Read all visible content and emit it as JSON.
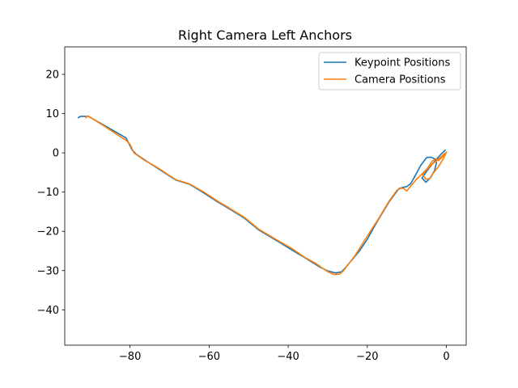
{
  "chart_data": {
    "type": "line",
    "title": "Right Camera Left Anchors",
    "xlabel": "",
    "ylabel": "",
    "xlim": [
      -96.5,
      5
    ],
    "ylim": [
      -49,
      27
    ],
    "xticks": [
      -80,
      -60,
      -40,
      -20,
      0
    ],
    "yticks": [
      20,
      10,
      0,
      -10,
      -20,
      -30,
      -40
    ],
    "grid": false,
    "legend": {
      "position": "top-right"
    },
    "series": [
      {
        "name": "Keypoint Positions",
        "color": "#1f77b4",
        "points": [
          [
            -93.2,
            8.9
          ],
          [
            -92.5,
            9.3
          ],
          [
            -90.5,
            9.3
          ],
          [
            -81,
            3.8
          ],
          [
            -79.5,
            0.8
          ],
          [
            -78.5,
            -0.3
          ],
          [
            -76,
            -2
          ],
          [
            -72,
            -4.6
          ],
          [
            -68.5,
            -6.9
          ],
          [
            -65,
            -8
          ],
          [
            -62,
            -9.8
          ],
          [
            -58,
            -12.4
          ],
          [
            -55,
            -14.2
          ],
          [
            -51,
            -16.7
          ],
          [
            -47.5,
            -19.6
          ],
          [
            -43,
            -22.3
          ],
          [
            -38,
            -25.4
          ],
          [
            -35,
            -27.2
          ],
          [
            -32,
            -29.1
          ],
          [
            -30,
            -30.1
          ],
          [
            -28,
            -30.6
          ],
          [
            -26.5,
            -30.3
          ],
          [
            -25.5,
            -29.2
          ],
          [
            -22,
            -25
          ],
          [
            -20,
            -22
          ],
          [
            -17.5,
            -17.5
          ],
          [
            -14.5,
            -12.5
          ],
          [
            -12,
            -9.1
          ],
          [
            -11,
            -8.8
          ],
          [
            -10,
            -8.6
          ],
          [
            -9,
            -7.8
          ],
          [
            -8,
            -6
          ],
          [
            -6.5,
            -3.2
          ],
          [
            -5,
            -1.2
          ],
          [
            -4,
            -1.1
          ],
          [
            -3,
            -1.5
          ],
          [
            -2.5,
            -2.5
          ],
          [
            -3,
            -4.5
          ],
          [
            -4,
            -6.3
          ],
          [
            -5.2,
            -7.5
          ],
          [
            -6.2,
            -6.4
          ],
          [
            -4.5,
            -4
          ],
          [
            -3,
            -2.2
          ],
          [
            -1.5,
            -0.5
          ],
          [
            -0.2,
            0.8
          ]
        ]
      },
      {
        "name": "Camera Positions",
        "color": "#ff7f0e",
        "points": [
          [
            -91.2,
            8.8
          ],
          [
            -91,
            9.3
          ],
          [
            -90.7,
            9.4
          ],
          [
            -89,
            8.4
          ],
          [
            -81,
            3.2
          ],
          [
            -80,
            2.2
          ],
          [
            -79,
            0
          ],
          [
            -76.5,
            -1.8
          ],
          [
            -73,
            -3.8
          ],
          [
            -68.5,
            -6.8
          ],
          [
            -65,
            -7.9
          ],
          [
            -61,
            -10.2
          ],
          [
            -58,
            -12.2
          ],
          [
            -55,
            -14
          ],
          [
            -51,
            -16.5
          ],
          [
            -47.5,
            -19.4
          ],
          [
            -42,
            -22.7
          ],
          [
            -39,
            -24.4
          ],
          [
            -36,
            -26.5
          ],
          [
            -33,
            -28.2
          ],
          [
            -30,
            -30.3
          ],
          [
            -28.5,
            -31
          ],
          [
            -27,
            -30.9
          ],
          [
            -26,
            -30
          ],
          [
            -23,
            -26
          ],
          [
            -20,
            -21.2
          ],
          [
            -17,
            -16.5
          ],
          [
            -14.5,
            -12.3
          ],
          [
            -12.5,
            -9.5
          ],
          [
            -11.5,
            -9
          ],
          [
            -10.8,
            -9.1
          ],
          [
            -10,
            -9.7
          ],
          [
            -9,
            -8.4
          ],
          [
            -7.8,
            -7
          ],
          [
            -5,
            -4.2
          ],
          [
            -3.5,
            -2
          ],
          [
            -2.6,
            -1.5
          ],
          [
            -2,
            -2
          ],
          [
            -1.2,
            -1.2
          ],
          [
            -0.5,
            -0.5
          ],
          [
            0,
            0.2
          ],
          [
            -0.8,
            -1.5
          ],
          [
            -2,
            -3.5
          ],
          [
            -3.5,
            -5.4
          ],
          [
            -4.3,
            -6.6
          ],
          [
            -5.3,
            -6.7
          ],
          [
            -6,
            -5.5
          ],
          [
            -5.2,
            -4.5
          ],
          [
            -4.3,
            -3.5
          ],
          [
            -2.5,
            -2
          ],
          [
            -1,
            -0.7
          ],
          [
            -0.3,
            0
          ]
        ]
      }
    ]
  }
}
